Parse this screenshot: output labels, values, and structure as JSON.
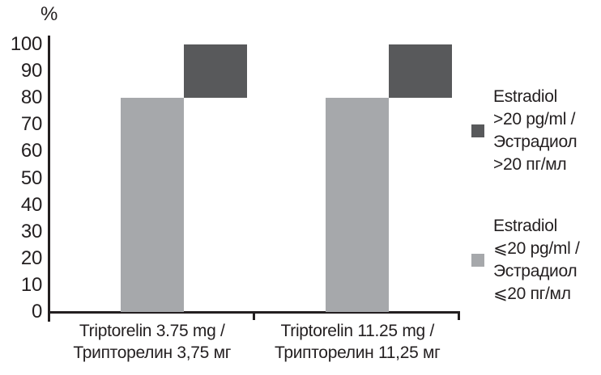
{
  "colors": {
    "background": "#ffffff",
    "axis": "#231f20",
    "text": "#231f20",
    "bar_low": "#a6a8ab",
    "bar_high": "#58595b"
  },
  "chart_data": {
    "type": "bar",
    "stacked": true,
    "title": "",
    "xlabel": "",
    "ylabel": "%",
    "ylim": [
      0,
      100
    ],
    "yticks": [
      0,
      10,
      20,
      30,
      40,
      50,
      60,
      70,
      80,
      90,
      100
    ],
    "grid": "off",
    "legend_position": "right",
    "categories": [
      [
        "Triptorelin 3.75 mg /",
        "Трипторелин 3,75 мг"
      ],
      [
        "Triptorelin 11.25 mg /",
        "Трипторелин 11,25 мг"
      ]
    ],
    "series": [
      {
        "name": "Estradiol ⩽20 pg/ml / Эстрадиол ⩽20 пг/мл",
        "color": "#a6a8ab",
        "values": [
          80,
          80
        ]
      },
      {
        "name": "Estradiol >20 pg/ml / Эстрадиол >20 пг/мл",
        "color": "#58595b",
        "values": [
          20,
          20
        ]
      }
    ]
  },
  "legend": {
    "items": [
      {
        "swatch_color": "#58595b",
        "lines": [
          "Estradiol",
          ">20 pg/ml /",
          "Эстрадиол",
          ">20 пг/мл"
        ]
      },
      {
        "swatch_color": "#a6a8ab",
        "lines": [
          "Estradiol",
          "⩽20 pg/ml /",
          "Эстрадиол",
          "⩽20 пг/мл"
        ]
      }
    ]
  }
}
